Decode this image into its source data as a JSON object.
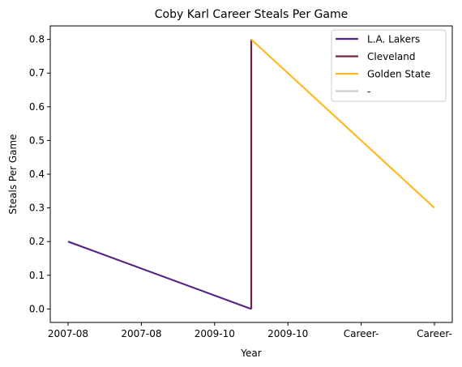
{
  "chart_data": {
    "type": "line",
    "title": "Coby Karl Career Steals Per Game",
    "xlabel": "Year",
    "ylabel": "Steals Per Game",
    "categories": [
      "2007-08",
      "2007-08",
      "2009-10",
      "2009-10",
      "Career-",
      "Career-"
    ],
    "ylim": [
      -0.04,
      0.84
    ],
    "yticks": [
      0.0,
      0.1,
      0.2,
      0.3,
      0.4,
      0.5,
      0.6,
      0.7,
      0.8
    ],
    "grid": false,
    "legend_position": "top-right",
    "series": [
      {
        "name": "L.A. Lakers",
        "color": "#552583",
        "points": [
          [
            0,
            0.2
          ],
          [
            2.5,
            0.0
          ]
        ]
      },
      {
        "name": "Cleveland",
        "color": "#6F263D",
        "points": [
          [
            2.5,
            0.0
          ],
          [
            2.5,
            0.8
          ]
        ]
      },
      {
        "name": "Golden State",
        "color": "#FDB927",
        "points": [
          [
            2.5,
            0.8
          ],
          [
            5,
            0.3
          ]
        ]
      },
      {
        "name": "-",
        "color": "#C4CED4",
        "points": []
      }
    ]
  }
}
